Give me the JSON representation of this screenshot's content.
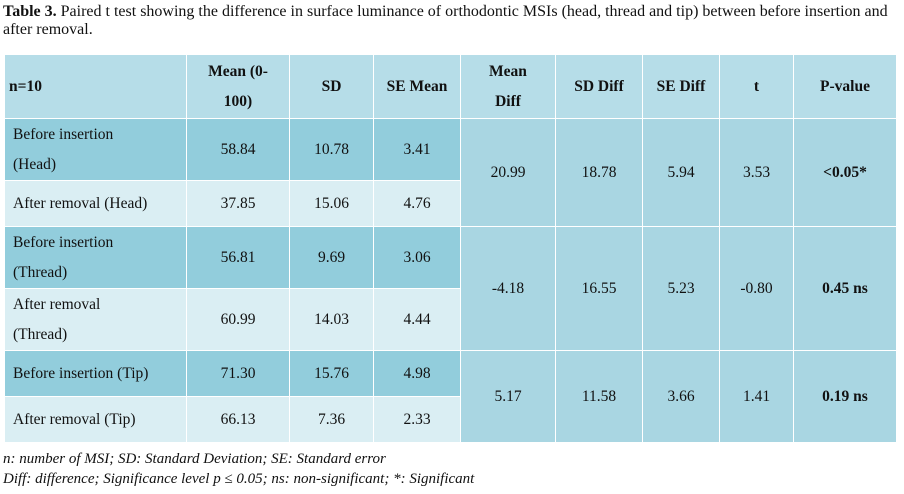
{
  "caption": {
    "label": "Table 3.",
    "text": " Paired t test showing the difference in surface luminance of orthodontic MSIs (head, thread and tip) between before insertion and after removal."
  },
  "header": {
    "n": "n=10",
    "mean_a": "Mean (0-",
    "mean_b": "100)",
    "sd": "SD",
    "se_mean": "SE Mean",
    "mean_diff_a": "Mean",
    "mean_diff_b": "Diff",
    "sd_diff": "SD Diff",
    "se_diff": "SE Diff",
    "t": "t",
    "p": "P-value"
  },
  "groups": [
    {
      "rows": [
        {
          "label_a": "Before insertion",
          "label_b": "(Head)",
          "mean": "58.84",
          "sd": "10.78",
          "se": "3.41"
        },
        {
          "label_a": "After removal (Head)",
          "label_b": "",
          "mean": "37.85",
          "sd": "15.06",
          "se": "4.76"
        }
      ],
      "mean_diff": "20.99",
      "sd_diff": "18.78",
      "se_diff": "5.94",
      "t": "3.53",
      "p": "<0.05*"
    },
    {
      "rows": [
        {
          "label_a": "Before insertion",
          "label_b": "(Thread)",
          "mean": "56.81",
          "sd": "9.69",
          "se": "3.06"
        },
        {
          "label_a": "After removal",
          "label_b": "(Thread)",
          "mean": "60.99",
          "sd": "14.03",
          "se": "4.44"
        }
      ],
      "mean_diff": "-4.18",
      "sd_diff": "16.55",
      "se_diff": "5.23",
      "t": "-0.80",
      "p": "0.45 ns"
    },
    {
      "rows": [
        {
          "label_a": "Before insertion (Tip)",
          "label_b": "",
          "mean": "71.30",
          "sd": "15.76",
          "se": "4.98"
        },
        {
          "label_a": "After removal (Tip)",
          "label_b": "",
          "mean": "66.13",
          "sd": "7.36",
          "se": "2.33"
        }
      ],
      "mean_diff": "5.17",
      "sd_diff": "11.58",
      "se_diff": "3.66",
      "t": "1.41",
      "p": "0.19 ns"
    }
  ],
  "footnotes": {
    "line1": "n: number of MSI; SD: Standard Deviation; SE: Standard error",
    "line2": "Diff: difference; Significance level p ≤ 0.05; ns: non-significant; *: Significant"
  }
}
